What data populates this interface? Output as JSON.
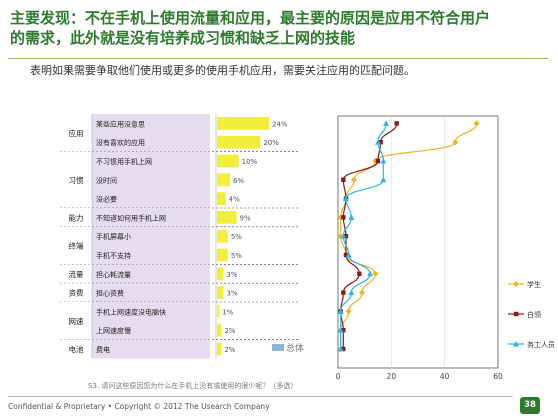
{
  "header": {
    "title_line1": "主要发现：不在手机上使用流量和应用，最主要的原因是应用不符合用户",
    "title_line2": "的需求，此外就是没有培养成习惯和缺乏上网的技能",
    "subtitle": "表明如果需要争取他们使用或更多的使用手机应用，需要关注应用的匹配问题。"
  },
  "table": {
    "legend_label": "总体",
    "question": "S3. 请问这些原因您为什么在手机上没有或使用的很少呢？（多选）",
    "groups": [
      {
        "name": "应用",
        "items": [
          "某些应用没意思",
          "没有喜欢的应用"
        ]
      },
      {
        "name": "习惯",
        "items": [
          "不习惯用手机上网",
          "没时间",
          "没必要"
        ]
      },
      {
        "name": "能力",
        "items": [
          "不知道如何用手机上网"
        ]
      },
      {
        "name": "终端",
        "items": [
          "手机屏幕小",
          "手机不支持"
        ]
      },
      {
        "name": "流量",
        "items": [
          "担心耗流量"
        ]
      },
      {
        "name": "资费",
        "items": [
          "担心资费"
        ]
      },
      {
        "name": "网速",
        "items": [
          "手机上网速度没电脑快",
          "上网速度慢"
        ]
      },
      {
        "name": "电池",
        "items": [
          "费电"
        ]
      }
    ]
  },
  "chart_data": [
    {
      "type": "bar",
      "categories": [
        "某些应用没意思",
        "没有喜欢的应用",
        "不习惯用手机上网",
        "没时间",
        "没必要",
        "不知道如何用手机上网",
        "手机屏幕小",
        "手机不支持",
        "担心耗流量",
        "担心资费",
        "手机上网速度没电脑快",
        "上网速度慢",
        "费电"
      ],
      "series": [
        {
          "name": "总体",
          "values": [
            24,
            20,
            10,
            6,
            4,
            9,
            5,
            5,
            3,
            3,
            1,
            2,
            2
          ]
        }
      ],
      "value_labels": [
        "24%",
        "20%",
        "10%",
        "6%",
        "4%",
        "9%",
        "5%",
        "5%",
        "3%",
        "3%",
        "1%",
        "2%",
        "2%"
      ],
      "color": "#f2ef3a"
    },
    {
      "type": "line",
      "categories": [
        "某些应用没意思",
        "没有喜欢的应用",
        "不习惯用手机上网",
        "没时间",
        "没必要",
        "不知道如何用手机上网",
        "手机屏幕小",
        "手机不支持",
        "担心耗流量",
        "担心资费",
        "手机上网速度没电脑快",
        "上网速度慢",
        "费电"
      ],
      "orientation": "vertical",
      "xlim": [
        0,
        60
      ],
      "x_ticks": [
        "0",
        "20",
        "40",
        "60"
      ],
      "series": [
        {
          "name": "学生",
          "color": "#f0b323",
          "marker": "diamond",
          "values": [
            52,
            44,
            14,
            6,
            3,
            1,
            1,
            3,
            14,
            9,
            4,
            1,
            1
          ]
        },
        {
          "name": "白领",
          "color": "#8b1a1a",
          "marker": "square",
          "values": [
            22,
            16,
            15,
            2,
            3,
            2,
            3,
            3,
            8,
            2,
            1,
            2,
            2
          ]
        },
        {
          "name": "务工人员",
          "color": "#2bb5e8",
          "marker": "triangle",
          "values": [
            18,
            15,
            17,
            17,
            3,
            5,
            2,
            4,
            12,
            5,
            1,
            1,
            1
          ]
        }
      ],
      "legend_position": "right"
    }
  ],
  "footer": {
    "text": "Confidential & Proprietary • Copyright © 2012 The Usearch Company",
    "page": "38"
  }
}
